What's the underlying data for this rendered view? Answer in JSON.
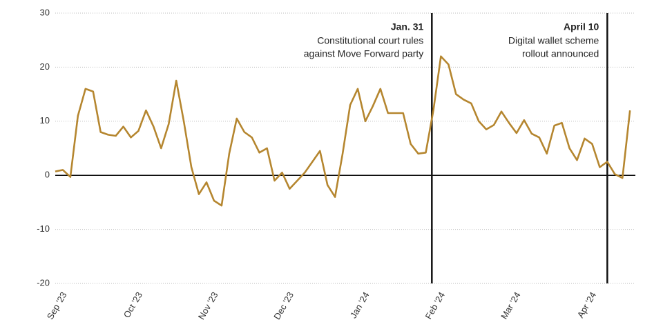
{
  "chart_data": {
    "type": "line",
    "categories": [
      "Sep '23",
      null,
      null,
      null,
      null,
      null,
      null,
      null,
      null,
      null,
      "Oct '23",
      null,
      null,
      null,
      null,
      null,
      null,
      null,
      null,
      null,
      "Nov '23",
      null,
      null,
      null,
      null,
      null,
      null,
      null,
      null,
      null,
      "Dec '23",
      null,
      null,
      null,
      null,
      null,
      null,
      null,
      null,
      null,
      "Jan '24",
      null,
      null,
      null,
      null,
      null,
      null,
      null,
      null,
      null,
      "Feb '24",
      null,
      null,
      null,
      null,
      null,
      null,
      null,
      null,
      null,
      "Mar '24",
      null,
      null,
      null,
      null,
      null,
      null,
      null,
      null,
      null,
      "Apr '24",
      null,
      null,
      null,
      null,
      null,
      null
    ],
    "series": [
      {
        "color": "#b5862f",
        "values": [
          0.7,
          1,
          -0.3,
          11,
          16,
          15.5,
          8,
          7.5,
          7.3,
          9,
          7,
          8.2,
          12,
          9,
          5,
          9.5,
          17.5,
          10,
          1.5,
          -3.5,
          -1.3,
          -4.7,
          -5.6,
          4,
          10.5,
          8,
          7,
          4.2,
          5,
          -1,
          0.5,
          -2.5,
          -1,
          0.5,
          2.5,
          4.5,
          -1.8,
          -4,
          4,
          13,
          16,
          10,
          12.8,
          16,
          11.5,
          11.5,
          11.5,
          5.8,
          4,
          4.2,
          12,
          22,
          20.5,
          15,
          14,
          13.3,
          10,
          8.5,
          9.3,
          11.8,
          9.7,
          7.8,
          10.2,
          7.7,
          7,
          4,
          9.2,
          9.7,
          5,
          2.8,
          6.8,
          5.8,
          1.5,
          2.5,
          0.2,
          -0.5,
          12
        ]
      }
    ],
    "ylim": [
      -20,
      30
    ],
    "yticks": [
      -20,
      -10,
      0,
      10,
      20,
      30
    ],
    "grid": true,
    "annotations": [
      {
        "title": "Jan. 31",
        "text": [
          "Constitutional court rules",
          "against Move Forward party"
        ]
      },
      {
        "title": "April 10",
        "text": [
          "Digital wallet scheme",
          "rollout announced"
        ]
      }
    ]
  }
}
